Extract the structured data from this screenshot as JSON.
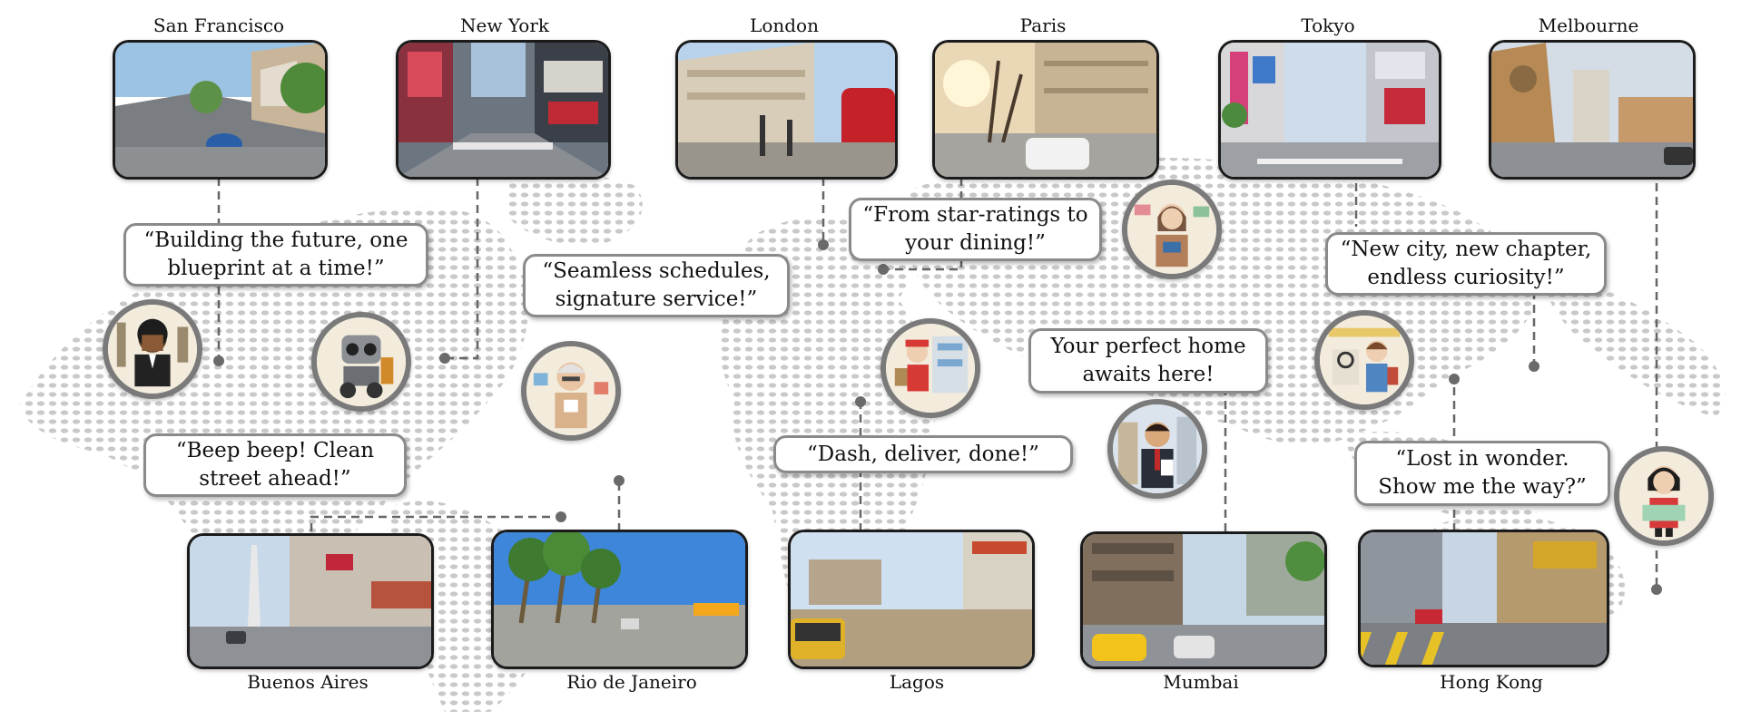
{
  "cities_top": [
    {
      "name": "San Francisco"
    },
    {
      "name": "New York"
    },
    {
      "name": "London"
    },
    {
      "name": "Paris"
    },
    {
      "name": "Tokyo"
    },
    {
      "name": "Melbourne"
    }
  ],
  "cities_bottom": [
    {
      "name": "Buenos Aires"
    },
    {
      "name": "Rio de Janeiro"
    },
    {
      "name": "Lagos"
    },
    {
      "name": "Mumbai"
    },
    {
      "name": "Hong Kong"
    }
  ],
  "quotes": [
    {
      "line1": "“Building the future, one",
      "line2": "blueprint at a time!”"
    },
    {
      "line1": "“Seamless schedules,",
      "line2": "signature service!”"
    },
    {
      "line1": "“From star-ratings to",
      "line2": "your dining!”"
    },
    {
      "line1": "“New city, new chapter,",
      "line2": "endless curiosity!”"
    },
    {
      "line1": "“Beep beep! Clean",
      "line2": "street ahead!”"
    },
    {
      "line1": "“Dash, deliver, done!”",
      "line2": ""
    },
    {
      "line1": "Your perfect home",
      "line2": "awaits here!"
    },
    {
      "line1": "“Lost in wonder.",
      "line2": "Show me the way?”"
    }
  ],
  "avatars": [
    {
      "icon": "architect-avatar-icon"
    },
    {
      "icon": "robot-avatar-icon"
    },
    {
      "icon": "concierge-avatar-icon"
    },
    {
      "icon": "food-critic-avatar-icon"
    },
    {
      "icon": "delivery-avatar-icon"
    },
    {
      "icon": "realtor-avatar-icon"
    },
    {
      "icon": "newcomer-avatar-icon"
    },
    {
      "icon": "tourist-avatar-icon"
    }
  ]
}
